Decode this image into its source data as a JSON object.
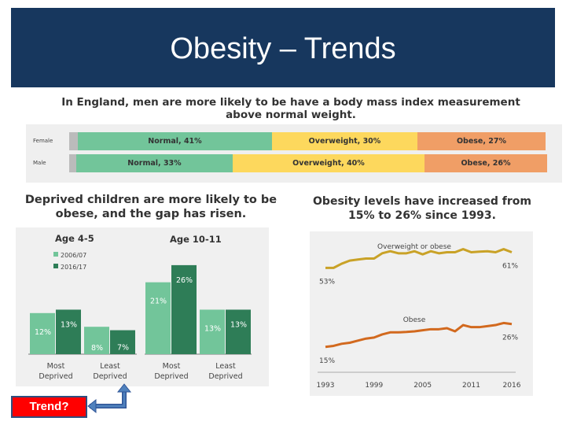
{
  "slide": {
    "title": "Obesity – Trends",
    "trend_button": "Trend?"
  },
  "chart_data": [
    {
      "type": "bar",
      "orientation": "horizontal-stacked",
      "title": "In England, men are more likely to be have a body mass index measurement above normal weight.",
      "categories": [
        "Female",
        "Male"
      ],
      "series": [
        {
          "name": "Normal",
          "values": [
            41,
            33
          ],
          "labels": [
            "Normal, 41%",
            "Normal, 33%"
          ],
          "color": "#72c59a"
        },
        {
          "name": "Overweight",
          "values": [
            30,
            40
          ],
          "labels": [
            "Overweight, 30%",
            "Overweight, 40%"
          ],
          "color": "#fdd85d"
        },
        {
          "name": "Obese",
          "values": [
            27,
            26
          ],
          "labels": [
            "Obese, 27%",
            "Obese, 26%"
          ],
          "color": "#f09e66"
        }
      ],
      "colors": {
        "other": "#bbbbbb"
      }
    },
    {
      "type": "bar",
      "title": "Deprived children are more likely to be obese, and the gap has risen.",
      "groups": [
        {
          "label": "Age 4-5",
          "categories": [
            "Most Deprived",
            "Least Deprived"
          ]
        },
        {
          "label": "Age 10-11",
          "categories": [
            "Most Deprived",
            "Least Deprived"
          ]
        }
      ],
      "series": [
        {
          "name": "2006/07",
          "values": [
            12,
            8,
            21,
            13
          ],
          "labels": [
            "12%",
            "8%",
            "21%",
            "13%"
          ],
          "color": "#72c59a"
        },
        {
          "name": "2016/17",
          "values": [
            13,
            7,
            26,
            13
          ],
          "labels": [
            "13%",
            "7%",
            "26%",
            "13%"
          ],
          "color": "#2e7d57"
        }
      ],
      "ylim": [
        0,
        30
      ]
    },
    {
      "type": "line",
      "title": "Obesity levels have increased from 15% to 26% since 1993.",
      "x": [
        1993,
        1994,
        1995,
        1996,
        1997,
        1998,
        1999,
        2000,
        2001,
        2002,
        2003,
        2004,
        2005,
        2006,
        2007,
        2008,
        2009,
        2010,
        2011,
        2012,
        2013,
        2014,
        2015,
        2016
      ],
      "xticks": [
        "1993",
        "1999",
        "2005",
        "2011",
        "2016"
      ],
      "series": [
        {
          "name": "Overweight or obese",
          "color": "#c9a227",
          "start_label": "53%",
          "end_label": "61%",
          "values": [
            53,
            53,
            55,
            56.5,
            57,
            57.5,
            57.5,
            60,
            61,
            60,
            60,
            61,
            59.5,
            61,
            60,
            60.5,
            60.5,
            62,
            60.5,
            60.8,
            61,
            60.5,
            62,
            60.5
          ]
        },
        {
          "name": "Obese",
          "color": "#d2691e",
          "start_label": "15%",
          "end_label": "26%",
          "values": [
            15,
            15.5,
            16.5,
            17,
            18,
            19,
            19.5,
            21,
            22,
            22,
            22.2,
            22.5,
            23,
            23.5,
            23.5,
            24,
            22.5,
            25.5,
            24.5,
            24.5,
            25,
            25.5,
            26.5,
            26
          ]
        }
      ],
      "ylim": [
        10,
        66
      ]
    }
  ]
}
